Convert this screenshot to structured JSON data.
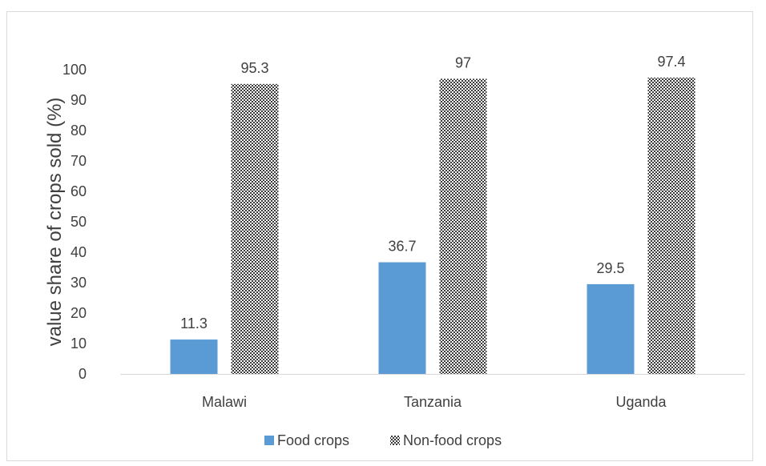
{
  "chart_data": {
    "type": "bar",
    "title": "",
    "xlabel": "",
    "ylabel": "value share of crops sold (%)",
    "categories": [
      "Malawi",
      "Tanzania",
      "Uganda"
    ],
    "ylim": [
      0,
      100
    ],
    "yticks": [
      0,
      10,
      20,
      30,
      40,
      50,
      60,
      70,
      80,
      90,
      100
    ],
    "grid": false,
    "legend_position": "bottom",
    "series": [
      {
        "name": "Food crops",
        "values": [
          11.3,
          36.7,
          29.5
        ],
        "color": "#5B9BD5",
        "pattern": "solid"
      },
      {
        "name": "Non-food crops",
        "values": [
          95.3,
          97,
          97.4
        ],
        "color": "#404040",
        "pattern": "checker"
      }
    ]
  }
}
